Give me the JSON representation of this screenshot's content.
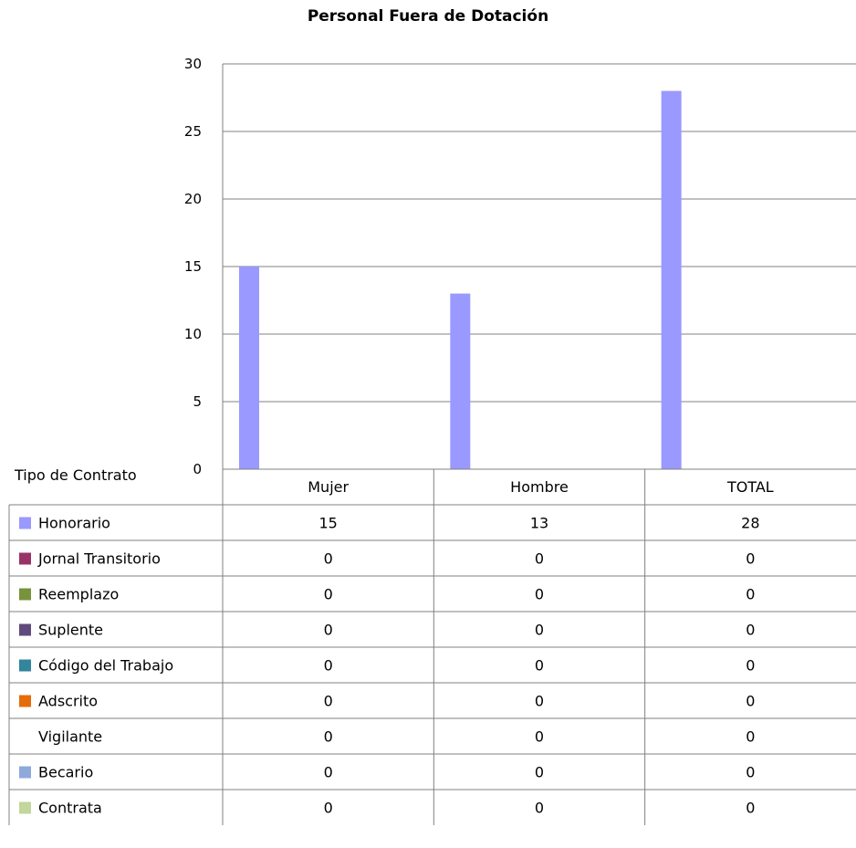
{
  "chart_data": {
    "type": "bar",
    "title": "Personal Fuera de Dotación",
    "table_header": "Tipo de Contrato",
    "categories": [
      "Mujer",
      "Hombre",
      "TOTAL"
    ],
    "ylim": [
      0,
      30
    ],
    "yticks": [
      0,
      5,
      10,
      15,
      20,
      25,
      30
    ],
    "grid": true,
    "legend": "data-table-below",
    "series": [
      {
        "name": "Honorario",
        "color": "#9999ff",
        "values": [
          15,
          13,
          28
        ]
      },
      {
        "name": "Jornal Transitorio",
        "color": "#993366",
        "values": [
          0,
          0,
          0
        ]
      },
      {
        "name": "Reemplazo",
        "color": "#77933c",
        "values": [
          0,
          0,
          0
        ]
      },
      {
        "name": "Suplente",
        "color": "#604a7b",
        "values": [
          0,
          0,
          0
        ]
      },
      {
        "name": "Código del Trabajo",
        "color": "#31859c",
        "values": [
          0,
          0,
          0
        ]
      },
      {
        "name": "Adscrito",
        "color": "#e46c0a",
        "values": [
          0,
          0,
          0
        ]
      },
      {
        "name": "Vigilante",
        "color": "#ffffff",
        "values": [
          0,
          0,
          0
        ]
      },
      {
        "name": "Becario",
        "color": "#8ea9db",
        "values": [
          0,
          0,
          0
        ]
      },
      {
        "name": "Contrata",
        "color": "#c3d69b",
        "values": [
          0,
          0,
          0
        ]
      }
    ]
  }
}
